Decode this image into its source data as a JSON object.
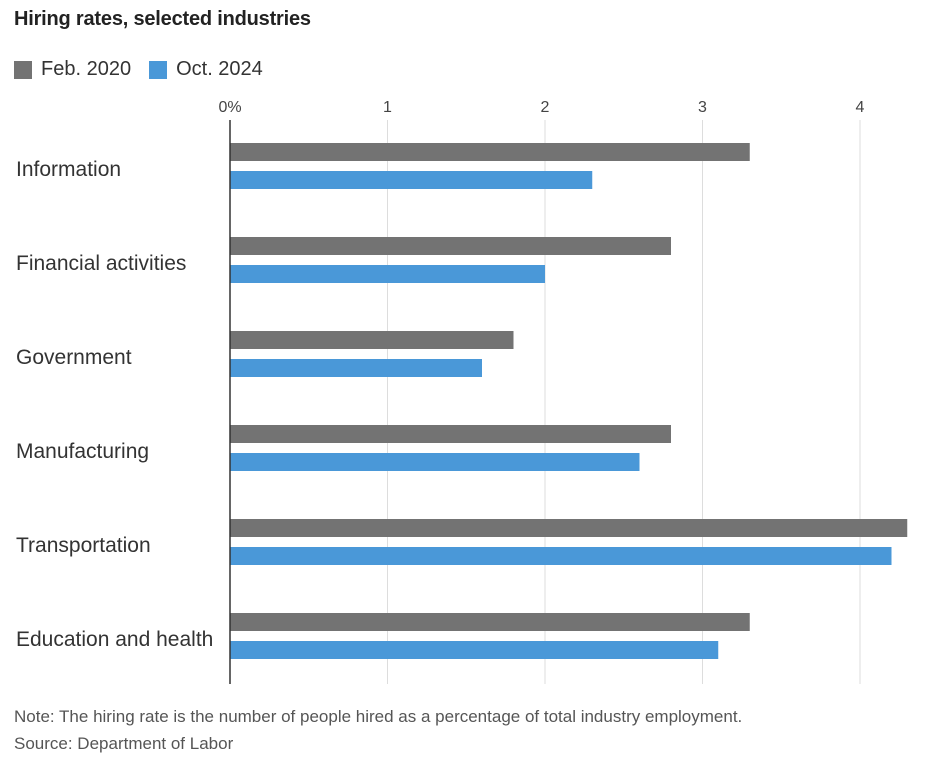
{
  "title": "Hiring rates, selected industries",
  "note": "Note: The hiring rate is the number of people hired as a percentage of total industry employment.",
  "source": "Source: Department of Labor",
  "colors": {
    "feb2020": "#737373",
    "oct2024": "#4a98d8",
    "grid": "#dddddd",
    "axis": "#333333"
  },
  "chart_data": {
    "type": "bar",
    "orientation": "horizontal",
    "categories": [
      "Information",
      "Financial activities",
      "Government",
      "Manufacturing",
      "Transportation",
      "Education and health"
    ],
    "series": [
      {
        "name": "Feb. 2020",
        "values": [
          3.3,
          2.8,
          1.8,
          2.8,
          4.3,
          3.3
        ]
      },
      {
        "name": "Oct. 2024",
        "values": [
          2.3,
          2.0,
          1.6,
          2.6,
          4.2,
          3.1
        ]
      }
    ],
    "xlim": [
      0,
      4.3
    ],
    "xticks": [
      "0%",
      "1",
      "2",
      "3",
      "4"
    ],
    "grid": true,
    "legend": "top-left"
  }
}
